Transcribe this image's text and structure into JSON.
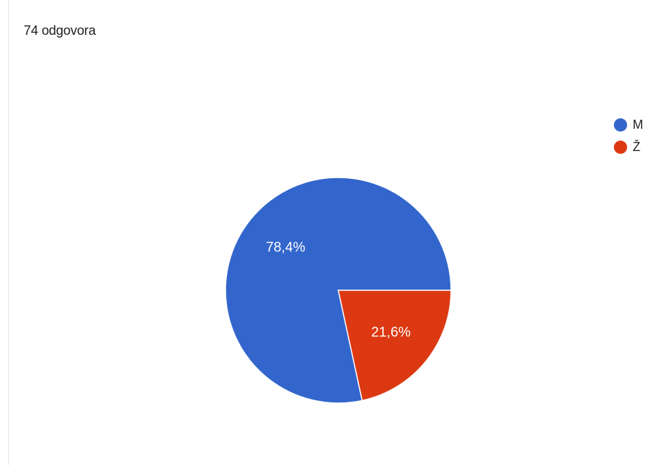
{
  "header": {
    "response_count": "74 odgovora"
  },
  "chart_data": {
    "type": "pie",
    "categories": [
      "M",
      "Ž"
    ],
    "values": [
      78.4,
      21.6
    ],
    "value_labels": [
      "78,4%",
      "21,6%"
    ],
    "colors": [
      "#3366cc",
      "#dc3912"
    ],
    "title": "",
    "legend_position": "top-right",
    "start_angle_deg": 0,
    "direction": "counterclockwise",
    "slice_border_color": "#ffffff"
  }
}
